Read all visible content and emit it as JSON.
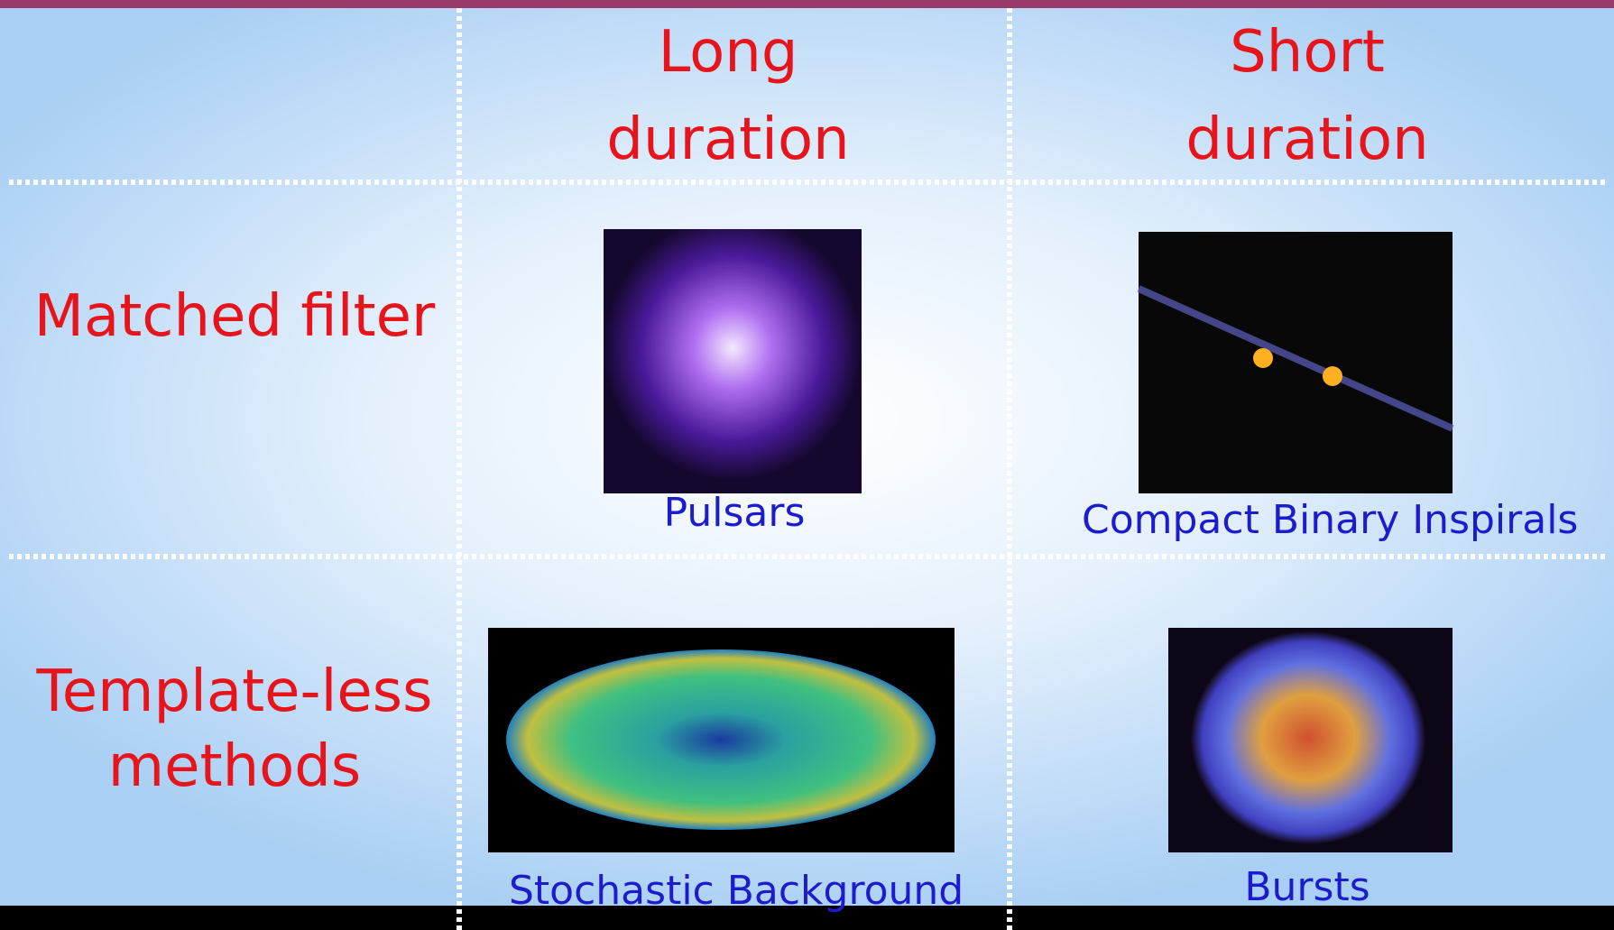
{
  "header": {
    "columns": [
      "Long duration",
      "Short duration"
    ]
  },
  "rows": [
    {
      "label": "Matched filter",
      "cells": [
        "Pulsars",
        "Compact Binary Inspirals"
      ]
    },
    {
      "label": "Template-less methods",
      "cells": [
        "Stochastic Background",
        "Bursts"
      ]
    }
  ]
}
